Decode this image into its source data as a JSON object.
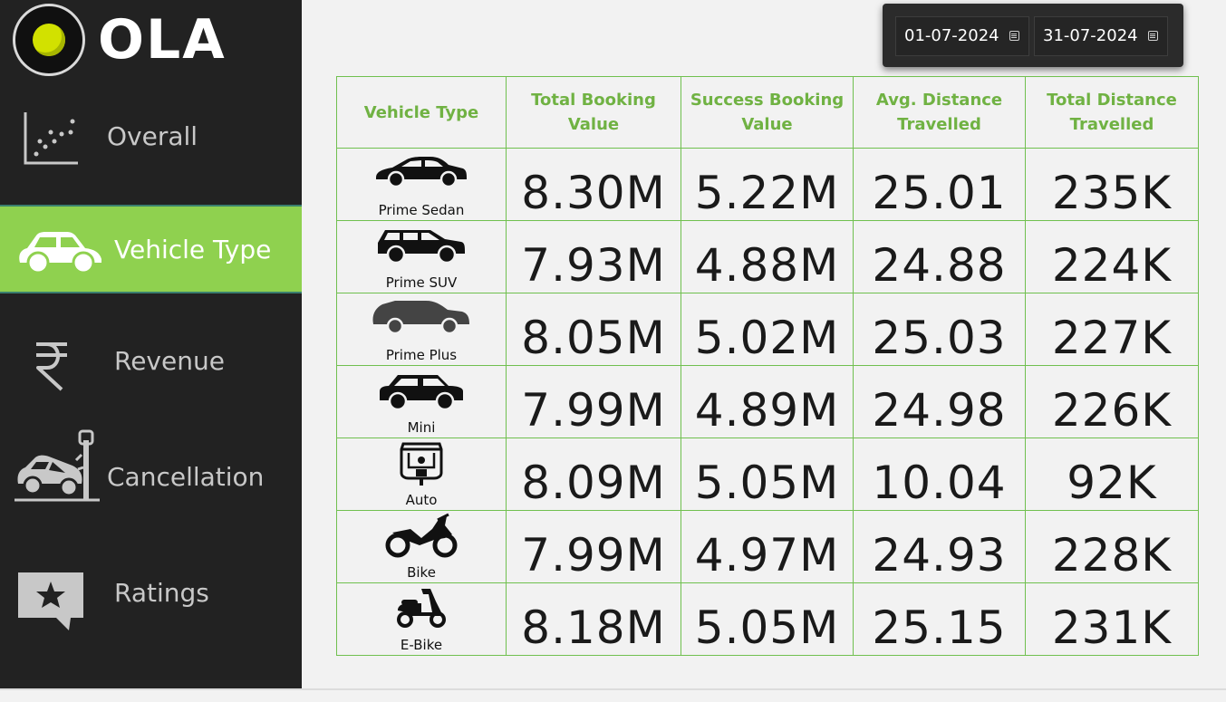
{
  "brand": {
    "name": "OLA",
    "ball_color": "#d2e100"
  },
  "sidebar": {
    "items": [
      {
        "label": "Overall",
        "icon": "scatter-chart-icon",
        "active": false
      },
      {
        "label": "Vehicle Type",
        "icon": "car-icon",
        "active": true
      },
      {
        "label": "Revenue",
        "icon": "rupee-icon",
        "active": false
      },
      {
        "label": "Cancellation",
        "icon": "car-crash-icon",
        "active": false
      },
      {
        "label": "Ratings",
        "icon": "star-message-icon",
        "active": false
      }
    ],
    "active_color": "#8fd14f"
  },
  "date_range": {
    "start": "01-07-2024",
    "end": "31-07-2024"
  },
  "table": {
    "header_color": "#70b243",
    "headers": [
      "Vehicle Type",
      "Total Booking Value",
      "Success Booking Value",
      "Avg. Distance Travelled",
      "Total Distance Travelled"
    ],
    "rows": [
      {
        "vehicle": "Prime Sedan",
        "icon": "sedan-icon",
        "total_booking": "8.30M",
        "success_booking": "5.22M",
        "avg_distance": "25.01",
        "total_distance": "235K"
      },
      {
        "vehicle": "Prime SUV",
        "icon": "suv-icon",
        "total_booking": "7.93M",
        "success_booking": "4.88M",
        "avg_distance": "24.88",
        "total_distance": "224K"
      },
      {
        "vehicle": "Prime Plus",
        "icon": "hatchback-icon",
        "total_booking": "8.05M",
        "success_booking": "5.02M",
        "avg_distance": "25.03",
        "total_distance": "227K"
      },
      {
        "vehicle": "Mini",
        "icon": "mini-car-icon",
        "total_booking": "7.99M",
        "success_booking": "4.89M",
        "avg_distance": "24.98",
        "total_distance": "226K"
      },
      {
        "vehicle": "Auto",
        "icon": "auto-rickshaw-icon",
        "total_booking": "8.09M",
        "success_booking": "5.05M",
        "avg_distance": "10.04",
        "total_distance": "92K"
      },
      {
        "vehicle": "Bike",
        "icon": "motorbike-icon",
        "total_booking": "7.99M",
        "success_booking": "4.97M",
        "avg_distance": "24.93",
        "total_distance": "228K"
      },
      {
        "vehicle": "E-Bike",
        "icon": "scooter-icon",
        "total_booking": "8.18M",
        "success_booking": "5.05M",
        "avg_distance": "25.15",
        "total_distance": "231K"
      }
    ]
  }
}
